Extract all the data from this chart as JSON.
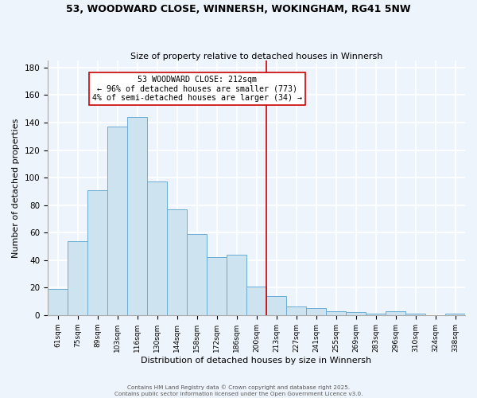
{
  "title_line1": "53, WOODWARD CLOSE, WINNERSH, WOKINGHAM, RG41 5NW",
  "title_line2": "Size of property relative to detached houses in Winnersh",
  "xlabel": "Distribution of detached houses by size in Winnersh",
  "ylabel": "Number of detached properties",
  "bar_labels": [
    "61sqm",
    "75sqm",
    "89sqm",
    "103sqm",
    "116sqm",
    "130sqm",
    "144sqm",
    "158sqm",
    "172sqm",
    "186sqm",
    "200sqm",
    "213sqm",
    "227sqm",
    "241sqm",
    "255sqm",
    "269sqm",
    "283sqm",
    "296sqm",
    "310sqm",
    "324sqm",
    "338sqm"
  ],
  "bar_values": [
    19,
    54,
    91,
    137,
    144,
    97,
    77,
    59,
    42,
    44,
    21,
    14,
    6,
    5,
    3,
    2,
    1,
    3,
    1,
    0,
    1
  ],
  "bar_color": "#cde4f0",
  "bar_edge_color": "#6aadd5",
  "vline_color": "#cc0000",
  "vline_x": 10.5,
  "annotation_text": "53 WOODWARD CLOSE: 212sqm\n← 96% of detached houses are smaller (773)\n4% of semi-detached houses are larger (34) →",
  "ylim": [
    0,
    185
  ],
  "yticks": [
    0,
    20,
    40,
    60,
    80,
    100,
    120,
    140,
    160,
    180
  ],
  "footer_line1": "Contains HM Land Registry data © Crown copyright and database right 2025.",
  "footer_line2": "Contains public sector information licensed under the Open Government Licence v3.0.",
  "background_color": "#eef4fb",
  "grid_color": "#ffffff"
}
